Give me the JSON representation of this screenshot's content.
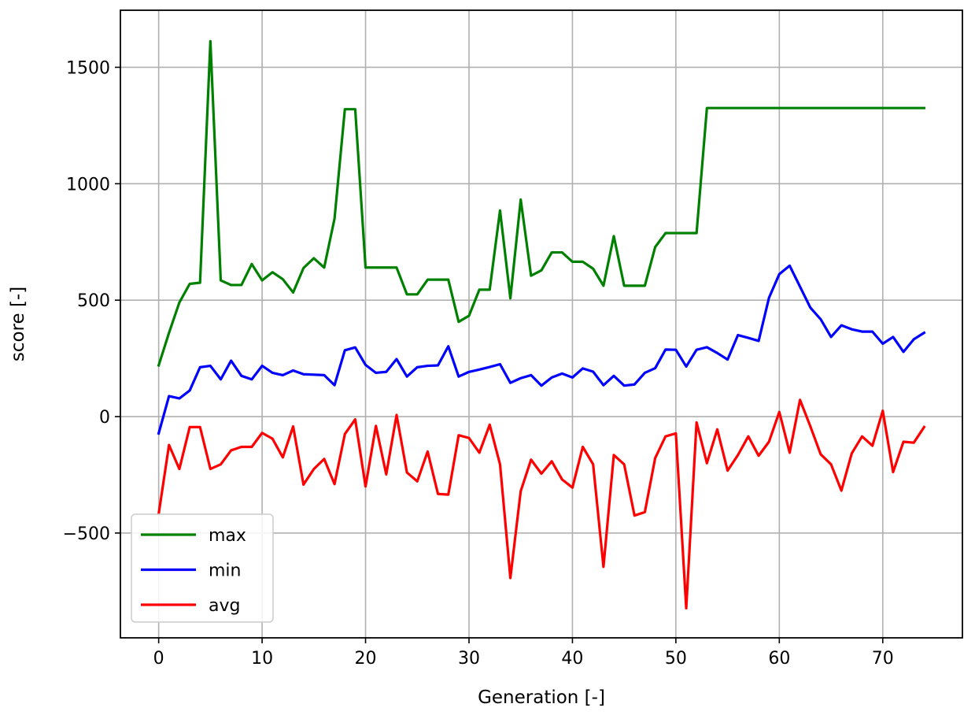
{
  "chart_data": {
    "type": "line",
    "title": "",
    "xlabel": "Generation [-]",
    "ylabel": "score [-]",
    "xlim": [
      -3.7,
      77.7
    ],
    "ylim": [
      -950,
      1745
    ],
    "xticks": [
      0,
      10,
      20,
      30,
      40,
      50,
      60,
      70
    ],
    "yticks": [
      -500,
      0,
      500,
      1000,
      1500
    ],
    "xtick_labels": [
      "0",
      "10",
      "20",
      "30",
      "40",
      "50",
      "60",
      "70"
    ],
    "ytick_labels": [
      "−500",
      "0",
      "500",
      "1000",
      "1500"
    ],
    "grid": true,
    "legend_position": "lower-left",
    "x": [
      0,
      1,
      2,
      3,
      4,
      5,
      6,
      7,
      8,
      9,
      10,
      11,
      12,
      13,
      14,
      15,
      16,
      17,
      18,
      19,
      20,
      21,
      22,
      23,
      24,
      25,
      26,
      27,
      28,
      29,
      30,
      31,
      32,
      33,
      34,
      35,
      36,
      37,
      38,
      39,
      40,
      41,
      42,
      43,
      44,
      45,
      46,
      47,
      48,
      49,
      50,
      51,
      52,
      53,
      54,
      55,
      56,
      57,
      58,
      59,
      60,
      61,
      62,
      63,
      64,
      65,
      66,
      67,
      68,
      69,
      70,
      71,
      72,
      73,
      74
    ],
    "series": [
      {
        "name": "max",
        "color": "#008000",
        "values": [
          220,
          360,
          490,
          570,
          575,
          1612,
          585,
          565,
          565,
          655,
          585,
          620,
          590,
          533,
          638,
          680,
          640,
          850,
          1320,
          1320,
          640,
          640,
          640,
          640,
          525,
          525,
          588,
          588,
          588,
          407,
          433,
          545,
          545,
          885,
          508,
          932,
          605,
          628,
          705,
          705,
          665,
          665,
          635,
          562,
          775,
          562,
          562,
          562,
          728,
          788,
          788,
          788,
          788,
          1325,
          1325,
          1325,
          1325,
          1325,
          1325,
          1325,
          1325,
          1325,
          1325,
          1325,
          1325,
          1325,
          1325,
          1325,
          1325,
          1325,
          1325,
          1325,
          1325,
          1325,
          1325
        ]
      },
      {
        "name": "min",
        "color": "#0000ff",
        "values": [
          -72,
          88,
          78,
          112,
          212,
          218,
          160,
          240,
          175,
          160,
          218,
          188,
          178,
          198,
          182,
          180,
          178,
          135,
          285,
          297,
          222,
          188,
          192,
          247,
          172,
          212,
          218,
          220,
          302,
          172,
          192,
          202,
          213,
          225,
          145,
          165,
          178,
          133,
          168,
          185,
          168,
          207,
          193,
          135,
          175,
          133,
          138,
          188,
          208,
          288,
          287,
          215,
          287,
          298,
          273,
          245,
          350,
          338,
          325,
          510,
          612,
          648,
          558,
          468,
          418,
          342,
          392,
          375,
          365,
          365,
          313,
          342,
          278,
          332,
          360
        ]
      },
      {
        "name": "avg",
        "color": "#ff0000",
        "values": [
          -418,
          -122,
          -225,
          -45,
          -45,
          -225,
          -205,
          -145,
          -130,
          -130,
          -70,
          -95,
          -175,
          -42,
          -292,
          -225,
          -182,
          -290,
          -75,
          -12,
          -300,
          -40,
          -248,
          7,
          -240,
          -278,
          -150,
          -332,
          -335,
          -80,
          -92,
          -155,
          -35,
          -205,
          -693,
          -320,
          -185,
          -245,
          -192,
          -270,
          -305,
          -130,
          -205,
          -645,
          -165,
          -205,
          -425,
          -410,
          -178,
          -85,
          -72,
          -823,
          -25,
          -200,
          -55,
          -232,
          -165,
          -85,
          -168,
          -108,
          20,
          -155,
          72,
          -42,
          -162,
          -205,
          -318,
          -158,
          -85,
          -125,
          25,
          -238,
          -108,
          -112,
          -45
        ]
      }
    ]
  }
}
